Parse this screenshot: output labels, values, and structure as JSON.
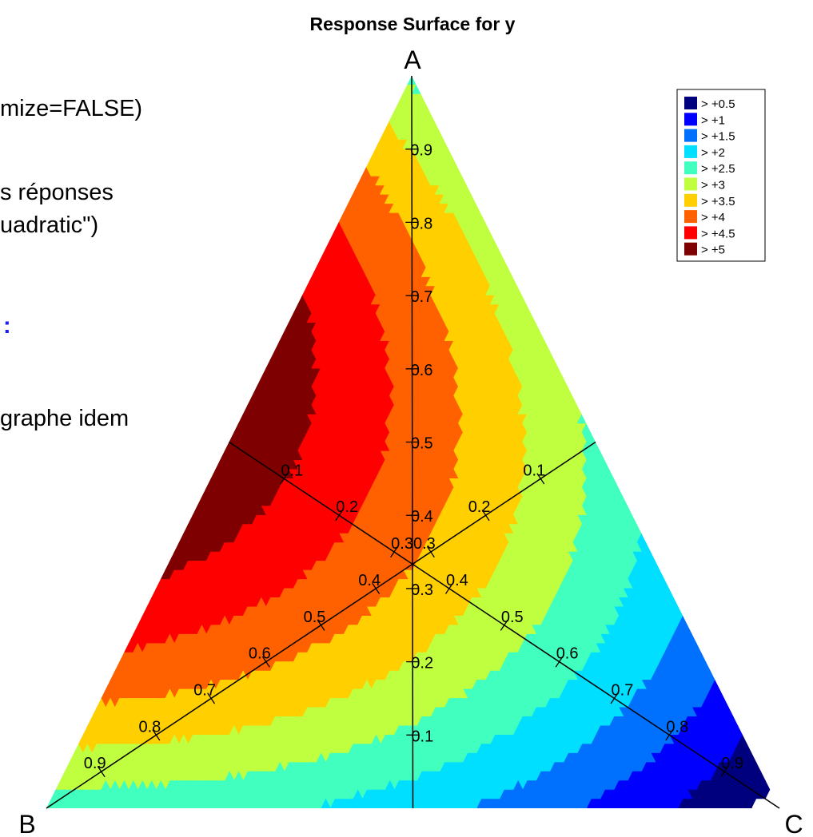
{
  "background_text": [
    "mize=FALSE)",
    "s réponses",
    "uadratic\")",
    ":",
    "graphe idem"
  ],
  "chart_data": {
    "type": "ternary-contour",
    "title": "Response Surface for y",
    "vertices": {
      "top": "A",
      "left": "B",
      "right": "C"
    },
    "axis_ticks": [
      "0.1",
      "0.2",
      "0.3",
      "0.4",
      "0.5",
      "0.6",
      "0.7",
      "0.8",
      "0.9"
    ],
    "legend": {
      "placement": "top-right",
      "entries": [
        {
          "label": "> +0.5",
          "color": "#00007f"
        },
        {
          "label": "> +1",
          "color": "#0000ff"
        },
        {
          "label": "> +1.5",
          "color": "#0070ff"
        },
        {
          "label": "> +2",
          "color": "#00dfff"
        },
        {
          "label": "> +2.5",
          "color": "#40ffbf"
        },
        {
          "label": "> +3",
          "color": "#bfff40"
        },
        {
          "label": "> +3.5",
          "color": "#ffcf00"
        },
        {
          "label": "> +4",
          "color": "#ff6000"
        },
        {
          "label": "> +4.5",
          "color": "#ff0000"
        },
        {
          "label": "> +5",
          "color": "#7f0000"
        }
      ]
    },
    "model": {
      "kind": "quadratic-mixture",
      "approx_values": {
        "pure_A": 2.9,
        "pure_B": 2.7,
        "pure_C": 0.3,
        "mid_AB": 5.4,
        "mid_AC": 2.9,
        "mid_BC": 2.2
      }
    }
  }
}
